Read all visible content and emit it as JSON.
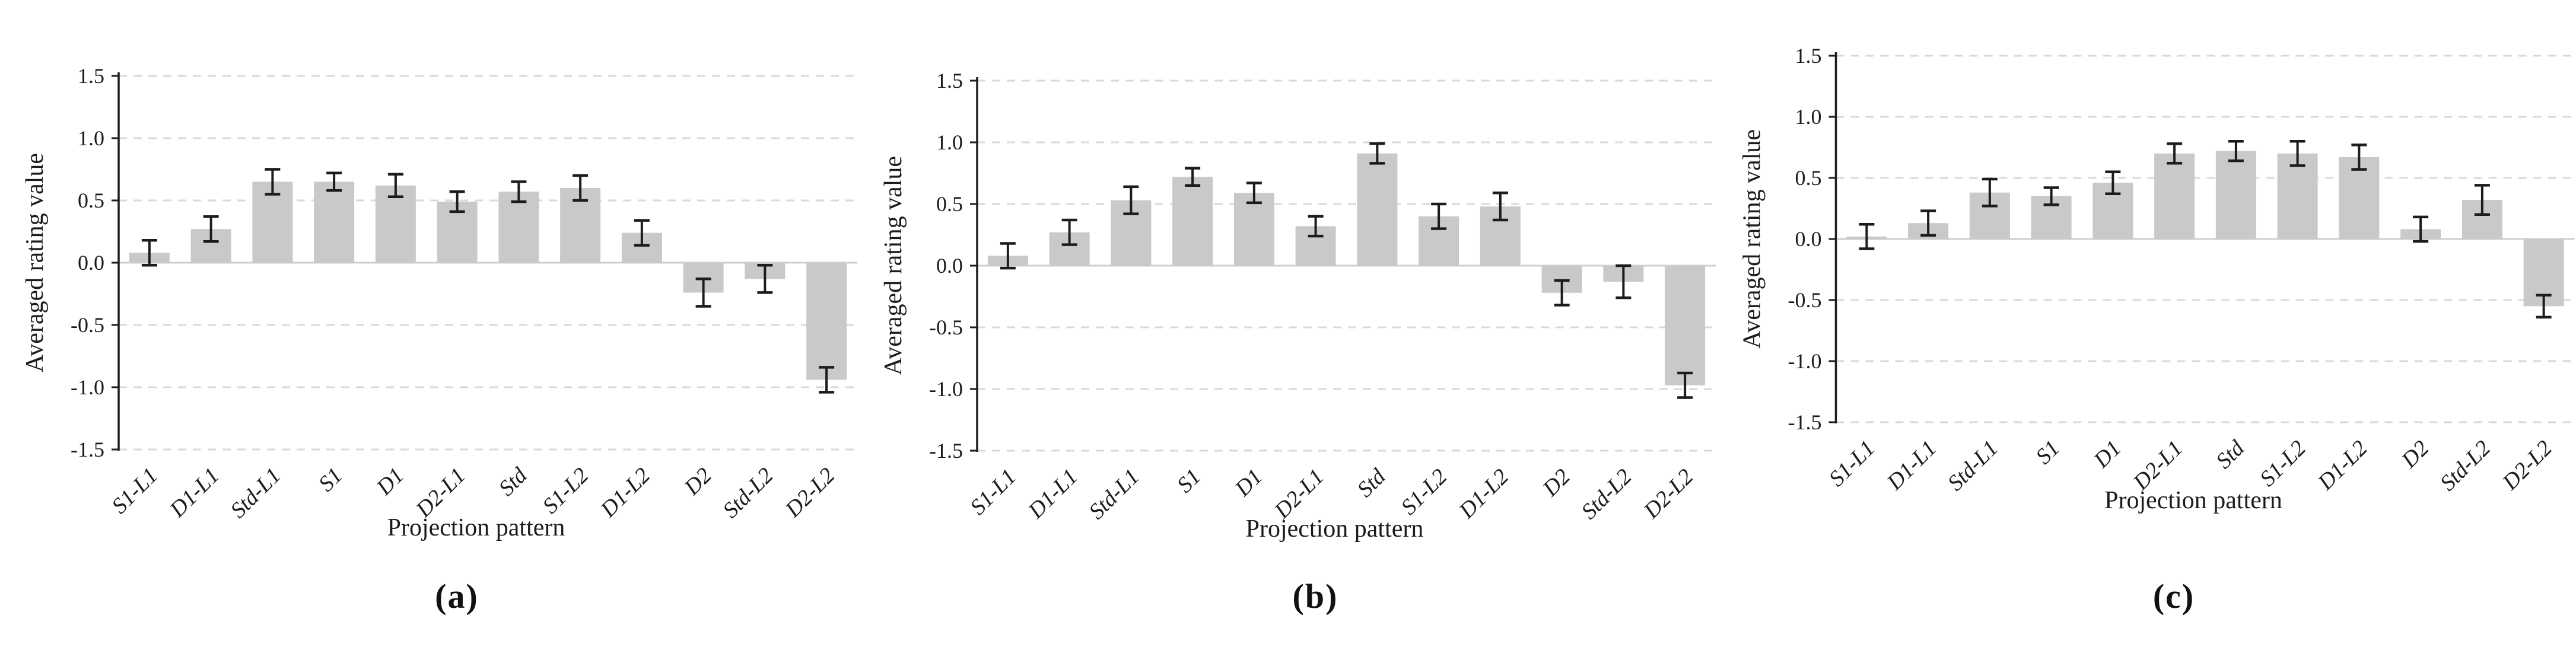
{
  "figure": {
    "background_color": "#ffffff",
    "text_color": "#1c1c1c",
    "colors": {
      "bar_fill": "#c9c9c9",
      "gridline": "#d9d9d9",
      "zero_line": "#cfcfcf",
      "axis_line": "#1c1c1c",
      "error_bar": "#1c1c1c"
    }
  },
  "chart_data": [
    {
      "type": "bar",
      "caption": "(a)",
      "xlabel": "Projection pattern",
      "ylabel": "Averaged rating value",
      "categories": [
        "S1-L1",
        "D1-L1",
        "Std-L1",
        "S1",
        "D1",
        "D2-L1",
        "Std",
        "S1-L2",
        "D1-L2",
        "D2",
        "Std-L2",
        "D2-L2"
      ],
      "values": [
        0.08,
        0.27,
        0.65,
        0.65,
        0.62,
        0.49,
        0.57,
        0.6,
        0.24,
        -0.24,
        -0.13,
        -0.94
      ],
      "errors": [
        0.1,
        0.1,
        0.1,
        0.07,
        0.09,
        0.08,
        0.08,
        0.1,
        0.1,
        0.11,
        0.11,
        0.1
      ],
      "error_bars": true,
      "ylim": [
        -1.5,
        1.5
      ],
      "ytick_interval": 0.5,
      "yticks": [
        "1.5",
        "1.0",
        "0.5",
        "0.0",
        "-0.5",
        "-1.0",
        "-1.5"
      ],
      "grid": "horizontal-dashed",
      "legend": null
    },
    {
      "type": "bar",
      "caption": "(b)",
      "xlabel": "Projection pattern",
      "ylabel": "Averaged rating value",
      "categories": [
        "S1-L1",
        "D1-L1",
        "Std-L1",
        "S1",
        "D1",
        "D2-L1",
        "Std",
        "S1-L2",
        "D1-L2",
        "D2",
        "Std-L2",
        "D2-L2"
      ],
      "values": [
        0.08,
        0.27,
        0.53,
        0.72,
        0.59,
        0.32,
        0.91,
        0.4,
        0.48,
        -0.22,
        -0.13,
        -0.97
      ],
      "errors": [
        0.1,
        0.1,
        0.11,
        0.07,
        0.08,
        0.08,
        0.08,
        0.1,
        0.11,
        0.1,
        0.13,
        0.1
      ],
      "error_bars": true,
      "ylim": [
        -1.5,
        1.5
      ],
      "ytick_interval": 0.5,
      "yticks": [
        "1.5",
        "1.0",
        "0.5",
        "0.0",
        "-0.5",
        "-1.0",
        "-1.5"
      ],
      "grid": "horizontal-dashed",
      "legend": null
    },
    {
      "type": "bar",
      "caption": "(c)",
      "xlabel": "Projection pattern",
      "ylabel": "Averaged rating value",
      "categories": [
        "S1-L1",
        "D1-L1",
        "Std-L1",
        "S1",
        "D1",
        "D2-L1",
        "Std",
        "S1-L2",
        "D1-L2",
        "D2",
        "Std-L2",
        "D2-L2"
      ],
      "values": [
        0.02,
        0.13,
        0.38,
        0.35,
        0.46,
        0.7,
        0.72,
        0.7,
        0.67,
        0.08,
        0.32,
        -0.55
      ],
      "errors": [
        0.1,
        0.1,
        0.11,
        0.07,
        0.09,
        0.08,
        0.08,
        0.1,
        0.1,
        0.1,
        0.12,
        0.09
      ],
      "error_bars": true,
      "ylim": [
        -1.5,
        1.5
      ],
      "ytick_interval": 0.5,
      "yticks": [
        "1.5",
        "1.0",
        "0.5",
        "0.0",
        "-0.5",
        "-1.0",
        "-1.5"
      ],
      "grid": "horizontal-dashed",
      "legend": null
    }
  ]
}
